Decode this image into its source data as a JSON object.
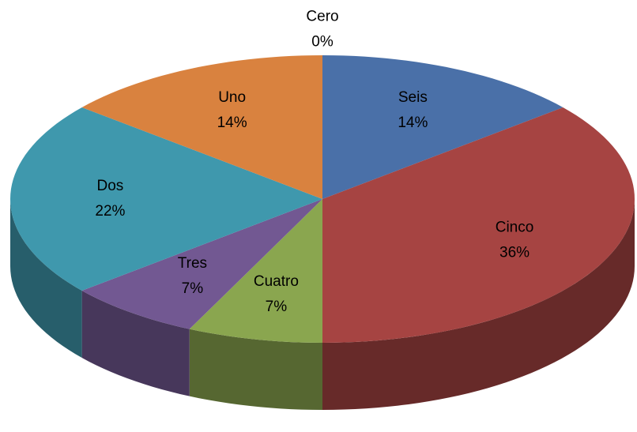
{
  "chart_data": {
    "type": "pie",
    "categories": [
      "Seis",
      "Cinco",
      "Cuatro",
      "Tres",
      "Dos",
      "Uno",
      "Cero"
    ],
    "values": [
      14,
      36,
      7,
      7,
      22,
      14,
      0
    ],
    "value_labels": [
      "14%",
      "36%",
      "7%",
      "7%",
      "22%",
      "14%",
      "0%"
    ],
    "colors": [
      "#4a70a8",
      "#a64442",
      "#8aa64f",
      "#725892",
      "#3f98ad",
      "#d9823f",
      "#9db5d8"
    ]
  }
}
